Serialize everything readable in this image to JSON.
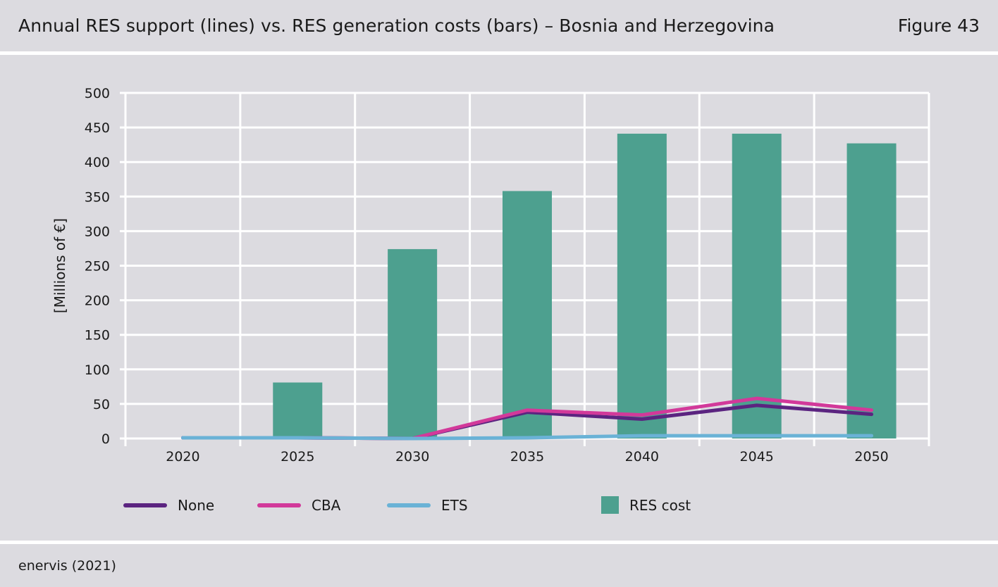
{
  "header": {
    "title": "Annual RES support (lines) vs. RES generation costs (bars) – Bosnia and Herzegovina",
    "figure_label": "Figure 43"
  },
  "footer": {
    "source": "enervis (2021)"
  },
  "chart_data": {
    "type": "bar",
    "title": "Annual RES support (lines) vs. RES generation costs (bars) – Bosnia and Herzegovina",
    "xlabel": "",
    "ylabel": "[Millions of €]",
    "categories": [
      "2020",
      "2025",
      "2030",
      "2035",
      "2040",
      "2045",
      "2050"
    ],
    "ylim": [
      0,
      500
    ],
    "yticks": [
      0,
      50,
      100,
      150,
      200,
      250,
      300,
      350,
      400,
      450,
      500
    ],
    "grid": true,
    "legend_position": "bottom",
    "bars": {
      "name": "RES cost",
      "color": "#4da08f",
      "values": [
        0,
        81,
        274,
        358,
        441,
        441,
        427
      ]
    },
    "series": [
      {
        "name": "None",
        "color": "#5b2480",
        "values": [
          1,
          1,
          0,
          38,
          28,
          48,
          35
        ]
      },
      {
        "name": "CBA",
        "color": "#d2399a",
        "values": [
          1,
          1,
          0,
          41,
          34,
          58,
          41
        ]
      },
      {
        "name": "ETS",
        "color": "#6ab2d6",
        "values": [
          1,
          1,
          0,
          1,
          4,
          4,
          4
        ]
      }
    ]
  }
}
